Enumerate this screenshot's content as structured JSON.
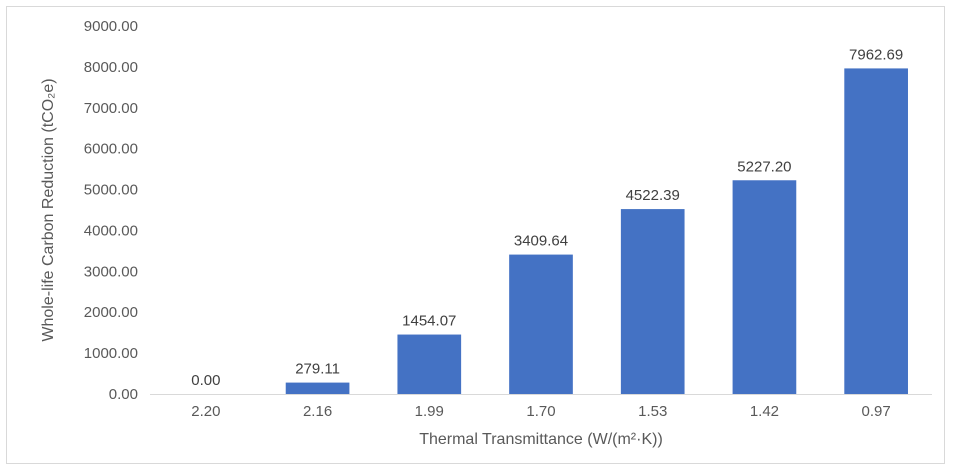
{
  "chart_data": {
    "type": "bar",
    "categories": [
      "2.20",
      "2.16",
      "1.99",
      "1.70",
      "1.53",
      "1.42",
      "0.97"
    ],
    "values": [
      0.0,
      279.11,
      1454.07,
      3409.64,
      4522.39,
      5227.2,
      7962.69
    ],
    "data_labels": [
      "0.00",
      "279.11",
      "1454.07",
      "3409.64",
      "4522.39",
      "5227.20",
      "7962.69"
    ],
    "xlabel": "Thermal Transmittance (W/(m²·K))",
    "ylabel": "Whole-life Carbon Reduction (tCO₂e)",
    "ylim": [
      0,
      9000
    ],
    "y_ticks": [
      "0.00",
      "1000.00",
      "2000.00",
      "3000.00",
      "4000.00",
      "5000.00",
      "6000.00",
      "7000.00",
      "8000.00",
      "9000.00"
    ],
    "grid": false,
    "legend": "none",
    "bar_color": "#4472c4",
    "axis_color": "#d9d9d9"
  }
}
